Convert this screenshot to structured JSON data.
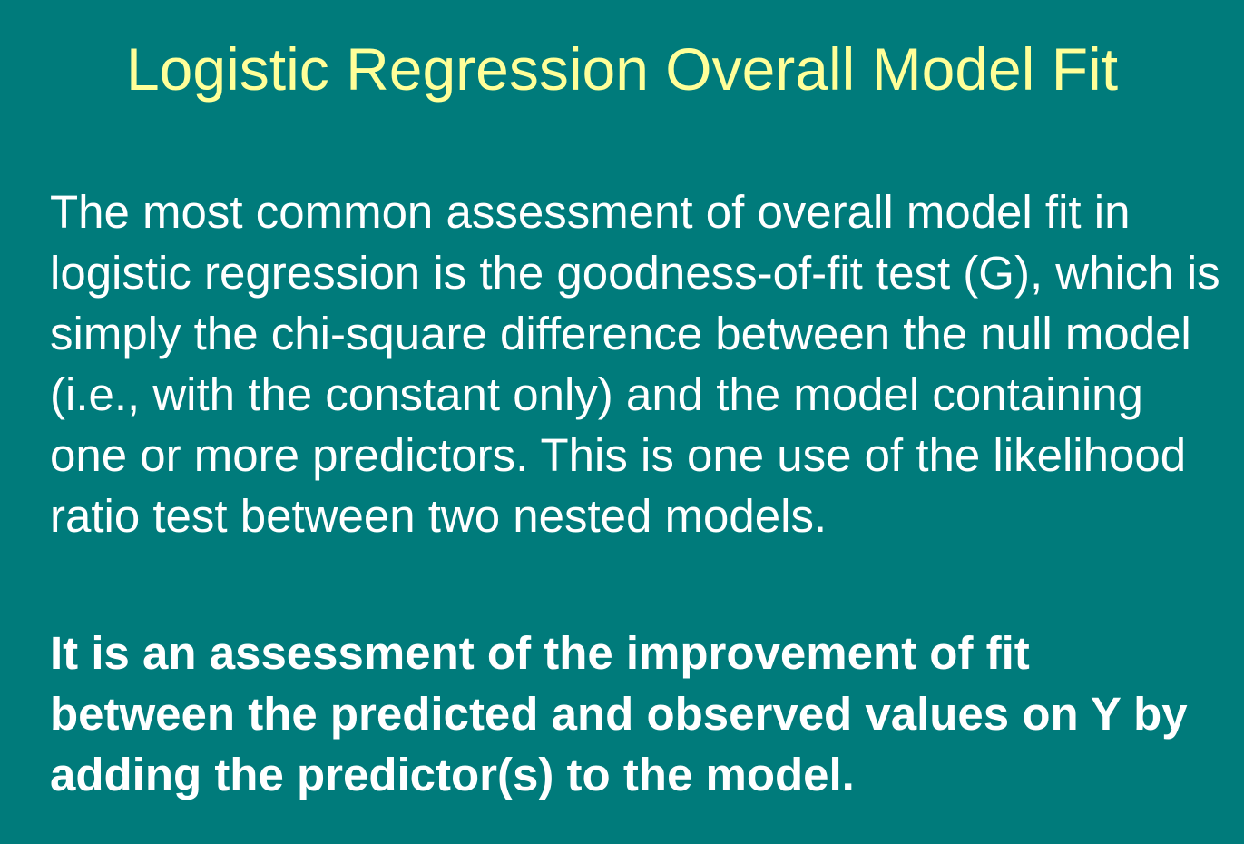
{
  "slide": {
    "title": "Logistic Regression Overall Model Fit",
    "paragraph1": "The most common assessment of overall model fit in logistic regression is the goodness-of-fit test (G), which is simply the chi-square difference between the null model (i.e., with the constant only) and the model containing one or more predictors. This is one use of the likelihood ratio test between two nested models.",
    "paragraph2": "It is an assessment of the improvement of fit between the predicted and observed values on Y by adding the predictor(s) to the model."
  },
  "colors": {
    "background": "#007b7b",
    "title": "#ffff99",
    "body": "#ffffff"
  }
}
